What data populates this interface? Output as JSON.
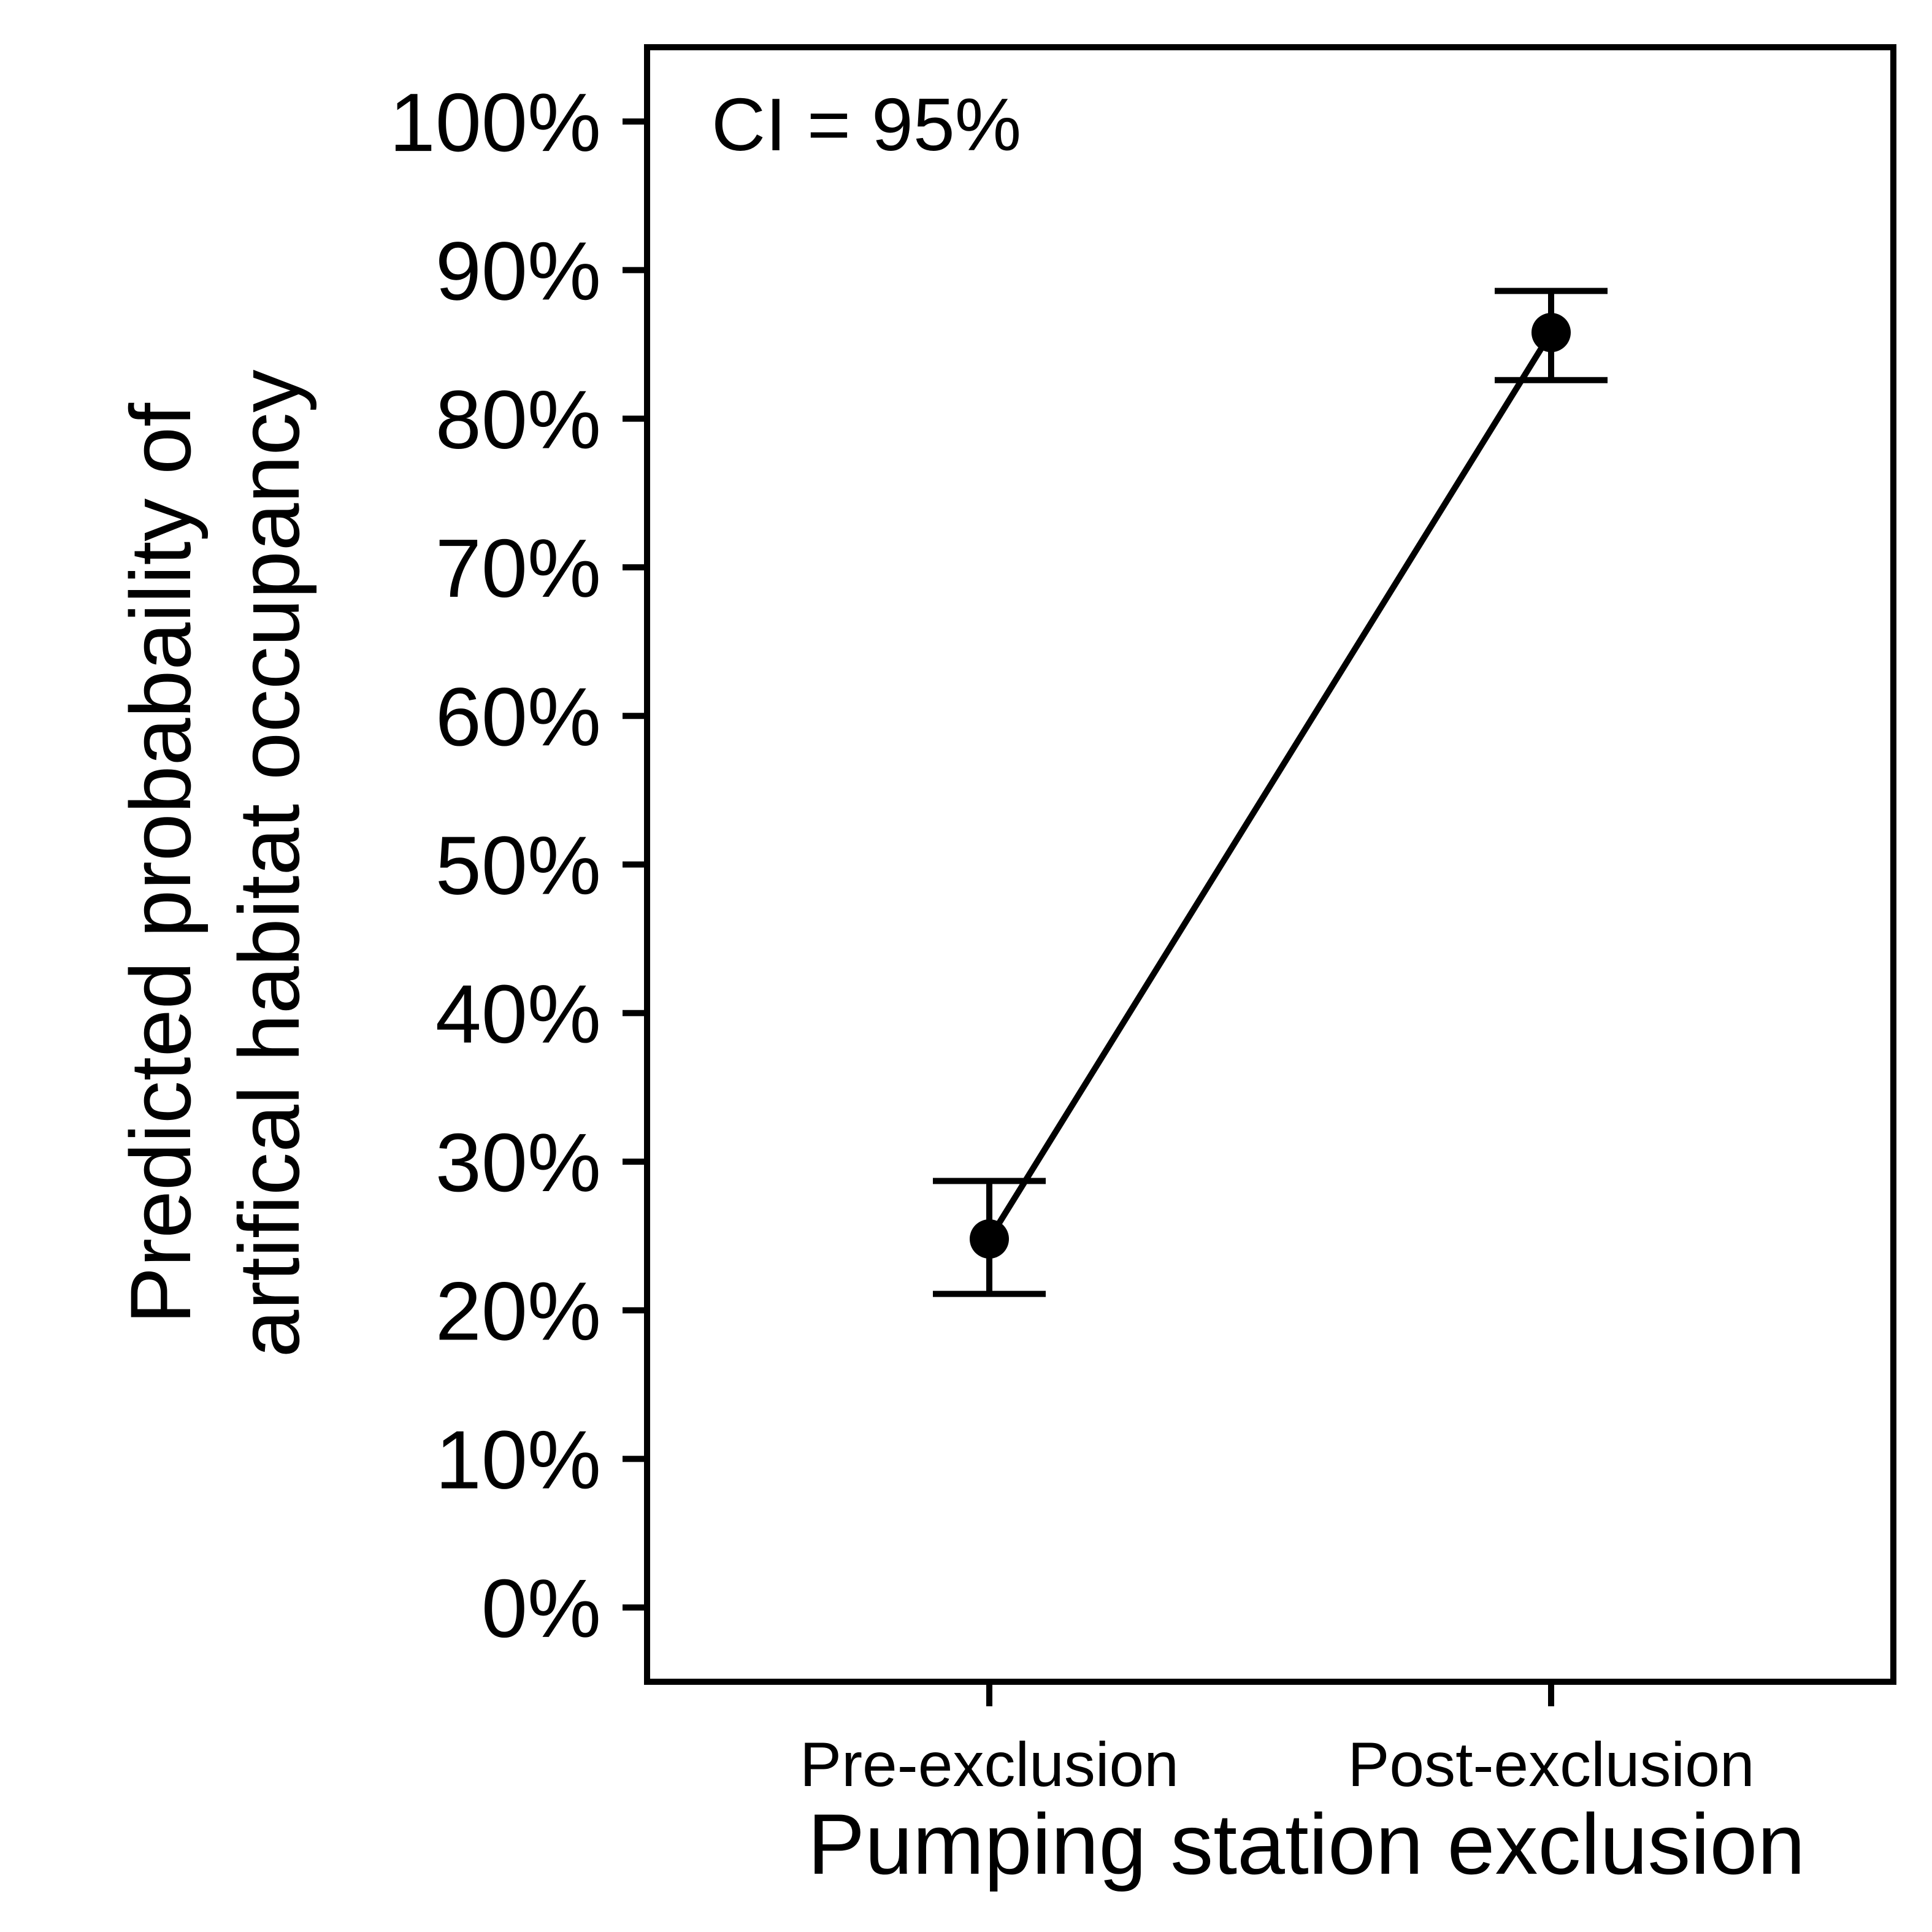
{
  "chart_data": {
    "type": "line",
    "categories": [
      "Pre-exclusion",
      "Post-exclusion"
    ],
    "series": [
      {
        "values": [
          24.8,
          85.8
        ],
        "ci_lower": [
          21.1,
          82.6
        ],
        "ci_upper": [
          28.7,
          88.6
        ]
      }
    ],
    "xlabel": "Pumping station exclusion",
    "ylabel_line1": "Predicted probabaility of",
    "ylabel_line2": "artifical habitat occupancy",
    "annotation": "CI = 95%",
    "ylim": [
      -5,
      105
    ],
    "yticks": [
      0,
      10,
      20,
      30,
      40,
      50,
      60,
      70,
      80,
      90,
      100
    ],
    "ytick_labels": [
      "0%",
      "10%",
      "20%",
      "30%",
      "40%",
      "50%",
      "60%",
      "70%",
      "80%",
      "90%",
      "100%"
    ],
    "grid": false,
    "line_color": "#000000",
    "point_color": "#000000"
  }
}
